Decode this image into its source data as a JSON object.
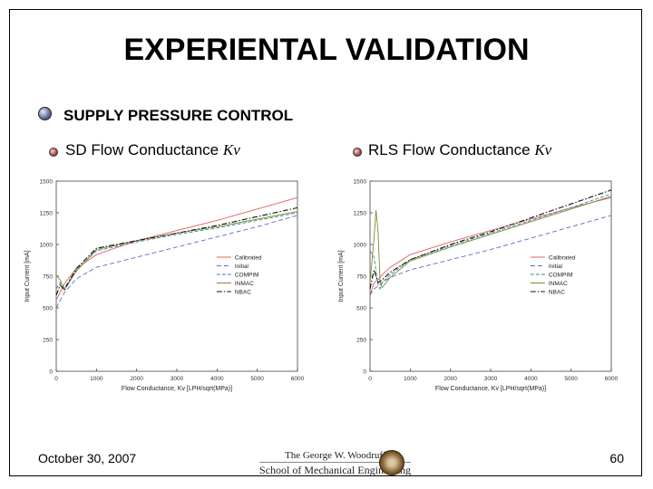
{
  "slide": {
    "title": "EXPERIENTAL VALIDATION",
    "section": "SUPPLY PRESSURE CONTROL",
    "left_caption": "SD Flow Conductance",
    "right_caption": "RLS Flow Conductance",
    "kv_symbol": "Kv",
    "date": "October 30, 2007",
    "page": "60",
    "logo_line1": "The George W. Woodruff",
    "logo_line2": "School of Mechanical Engineering"
  },
  "colors": {
    "Calibrated": "#e06060",
    "Initial": "#5a6ad0",
    "COMPIM": "#3a8aa0",
    "INMAC": "#7a8a30",
    "NBAC": "#111111"
  },
  "chart_data": [
    {
      "type": "line",
      "xlabel": "Flow Conductance, Kv [LPH/sqrt(MPa)]",
      "ylabel": "Input Current [mA]",
      "xlim": [
        0,
        6000
      ],
      "ylim": [
        0,
        1500
      ],
      "xticks": [
        0,
        1000,
        2000,
        3000,
        4000,
        5000,
        6000
      ],
      "yticks": [
        0,
        250,
        500,
        750,
        1000,
        1250,
        1500
      ],
      "legend_position": "right-middle",
      "series": [
        {
          "name": "Calibrated",
          "x": [
            0,
            200,
            500,
            1000,
            2000,
            3000,
            4000,
            5000,
            6000
          ],
          "y": [
            560,
            690,
            810,
            920,
            1030,
            1110,
            1190,
            1280,
            1370
          ]
        },
        {
          "name": "Initial",
          "x": [
            0,
            200,
            500,
            1000,
            2000,
            3000,
            4000,
            5000,
            6000
          ],
          "y": [
            500,
            620,
            730,
            820,
            900,
            980,
            1060,
            1140,
            1230
          ]
        },
        {
          "name": "COMPIM",
          "x": [
            0,
            100,
            200,
            300,
            500,
            1000,
            2000,
            3000,
            4000,
            5000,
            6000
          ],
          "y": [
            650,
            700,
            660,
            700,
            800,
            950,
            1020,
            1080,
            1130,
            1190,
            1250
          ]
        },
        {
          "name": "INMAC",
          "x": [
            0,
            100,
            200,
            300,
            500,
            1000,
            2000,
            3000,
            4000,
            5000,
            6000
          ],
          "y": [
            760,
            720,
            640,
            690,
            790,
            960,
            1030,
            1090,
            1140,
            1200,
            1260
          ]
        },
        {
          "name": "NBAC",
          "x": [
            0,
            100,
            200,
            300,
            500,
            1000,
            2000,
            3000,
            4000,
            5000,
            6000
          ],
          "y": [
            600,
            680,
            640,
            700,
            810,
            970,
            1030,
            1090,
            1150,
            1220,
            1290
          ]
        }
      ]
    },
    {
      "type": "line",
      "xlabel": "Flow Conductance, Kv [LPH/sqrt(MPa)]",
      "ylabel": "Input Current [mA]",
      "xlim": [
        0,
        6000
      ],
      "ylim": [
        0,
        1500
      ],
      "xticks": [
        0,
        1000,
        2000,
        3000,
        4000,
        5000,
        6000
      ],
      "yticks": [
        0,
        250,
        500,
        750,
        1000,
        1250,
        1500
      ],
      "legend_position": "right-middle",
      "series": [
        {
          "name": "Calibrated",
          "x": [
            0,
            100,
            200,
            300,
            500,
            1000,
            2000,
            3000,
            4000,
            5000,
            6000
          ],
          "y": [
            600,
            700,
            720,
            760,
            820,
            920,
            1020,
            1110,
            1200,
            1290,
            1370
          ]
        },
        {
          "name": "Initial",
          "x": [
            0,
            100,
            200,
            300,
            500,
            1000,
            2000,
            3000,
            4000,
            5000,
            6000
          ],
          "y": [
            600,
            650,
            670,
            700,
            740,
            800,
            880,
            960,
            1050,
            1140,
            1230
          ]
        },
        {
          "name": "COMPIM",
          "x": [
            0,
            100,
            200,
            250,
            300,
            500,
            1000,
            2000,
            3000,
            4000,
            5000,
            6000
          ],
          "y": [
            950,
            900,
            680,
            650,
            700,
            760,
            880,
            990,
            1090,
            1190,
            1290,
            1400
          ]
        },
        {
          "name": "INMAC",
          "x": [
            0,
            100,
            150,
            200,
            250,
            300,
            500,
            1000,
            2000,
            3000,
            4000,
            5000,
            6000
          ],
          "y": [
            700,
            1050,
            1270,
            1100,
            700,
            660,
            740,
            870,
            980,
            1080,
            1180,
            1280,
            1380
          ]
        },
        {
          "name": "NBAC",
          "x": [
            0,
            100,
            200,
            300,
            500,
            1000,
            2000,
            3000,
            4000,
            5000,
            6000
          ],
          "y": [
            650,
            800,
            700,
            720,
            780,
            880,
            1000,
            1100,
            1210,
            1320,
            1430
          ]
        }
      ]
    }
  ]
}
